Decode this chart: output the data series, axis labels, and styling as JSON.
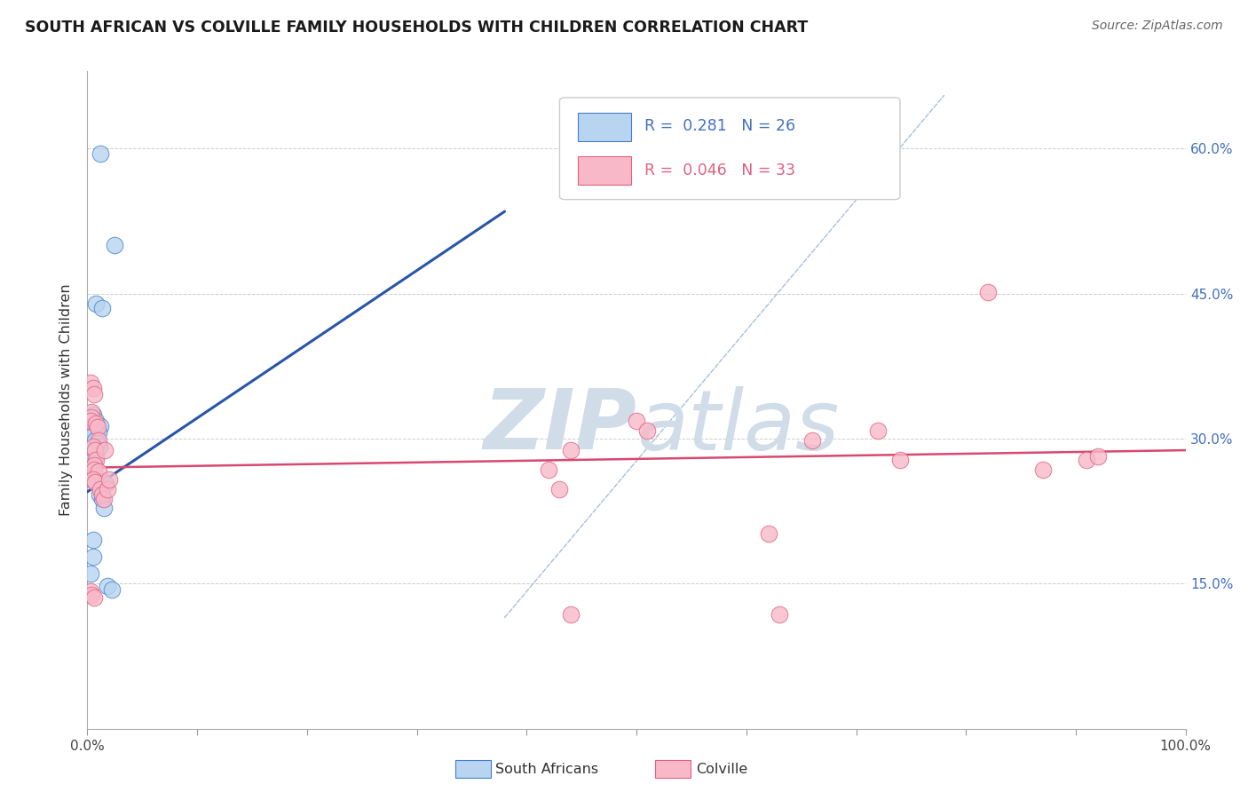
{
  "title": "SOUTH AFRICAN VS COLVILLE FAMILY HOUSEHOLDS WITH CHILDREN CORRELATION CHART",
  "source": "Source: ZipAtlas.com",
  "ylabel": "Family Households with Children",
  "xlim": [
    0,
    1.0
  ],
  "ylim": [
    0.0,
    0.68
  ],
  "xtick_vals": [
    0.0,
    0.1,
    0.2,
    0.3,
    0.4,
    0.5,
    0.6,
    0.7,
    0.8,
    0.9,
    1.0
  ],
  "xticklabels": [
    "0.0%",
    "",
    "",
    "",
    "",
    "",
    "",
    "",
    "",
    "",
    "100.0%"
  ],
  "ytick_vals": [
    0.0,
    0.15,
    0.3,
    0.45,
    0.6
  ],
  "yticklabels_right": [
    "",
    "15.0%",
    "30.0%",
    "45.0%",
    "60.0%"
  ],
  "blue_scatter": [
    [
      0.012,
      0.595
    ],
    [
      0.025,
      0.5
    ],
    [
      0.008,
      0.44
    ],
    [
      0.013,
      0.435
    ],
    [
      0.005,
      0.325
    ],
    [
      0.008,
      0.318
    ],
    [
      0.012,
      0.313
    ],
    [
      0.006,
      0.308
    ],
    [
      0.01,
      0.306
    ],
    [
      0.004,
      0.302
    ],
    [
      0.007,
      0.298
    ],
    [
      0.009,
      0.295
    ],
    [
      0.011,
      0.292
    ],
    [
      0.003,
      0.288
    ],
    [
      0.008,
      0.282
    ],
    [
      0.005,
      0.278
    ],
    [
      0.004,
      0.258
    ],
    [
      0.014,
      0.256
    ],
    [
      0.017,
      0.253
    ],
    [
      0.011,
      0.242
    ],
    [
      0.013,
      0.238
    ],
    [
      0.015,
      0.228
    ],
    [
      0.005,
      0.195
    ],
    [
      0.005,
      0.178
    ],
    [
      0.003,
      0.16
    ],
    [
      0.018,
      0.148
    ],
    [
      0.022,
      0.144
    ]
  ],
  "pink_scatter": [
    [
      0.003,
      0.358
    ],
    [
      0.005,
      0.352
    ],
    [
      0.006,
      0.346
    ],
    [
      0.004,
      0.328
    ],
    [
      0.004,
      0.322
    ],
    [
      0.003,
      0.318
    ],
    [
      0.008,
      0.316
    ],
    [
      0.009,
      0.312
    ],
    [
      0.01,
      0.298
    ],
    [
      0.005,
      0.292
    ],
    [
      0.007,
      0.288
    ],
    [
      0.008,
      0.278
    ],
    [
      0.006,
      0.272
    ],
    [
      0.006,
      0.268
    ],
    [
      0.01,
      0.266
    ],
    [
      0.005,
      0.258
    ],
    [
      0.007,
      0.255
    ],
    [
      0.012,
      0.248
    ],
    [
      0.013,
      0.242
    ],
    [
      0.015,
      0.238
    ],
    [
      0.016,
      0.288
    ],
    [
      0.018,
      0.248
    ],
    [
      0.02,
      0.258
    ],
    [
      0.003,
      0.142
    ],
    [
      0.004,
      0.138
    ],
    [
      0.006,
      0.136
    ],
    [
      0.42,
      0.268
    ],
    [
      0.43,
      0.248
    ],
    [
      0.44,
      0.288
    ],
    [
      0.5,
      0.318
    ],
    [
      0.51,
      0.308
    ],
    [
      0.62,
      0.202
    ],
    [
      0.66,
      0.298
    ],
    [
      0.72,
      0.308
    ],
    [
      0.74,
      0.278
    ],
    [
      0.82,
      0.452
    ],
    [
      0.87,
      0.268
    ],
    [
      0.91,
      0.278
    ],
    [
      0.92,
      0.282
    ],
    [
      0.44,
      0.118
    ],
    [
      0.63,
      0.118
    ]
  ],
  "blue_line_x": [
    0.0,
    0.38
  ],
  "blue_line_y": [
    0.245,
    0.535
  ],
  "pink_line_x": [
    0.0,
    1.0
  ],
  "pink_line_y": [
    0.27,
    0.288
  ],
  "dashed_line_x": [
    0.38,
    0.78
  ],
  "dashed_line_y": [
    0.115,
    0.655
  ],
  "blue_fill_color": "#b8d4f0",
  "blue_edge_color": "#4080c8",
  "pink_fill_color": "#f8b8c8",
  "pink_edge_color": "#e06080",
  "blue_line_color": "#2855a8",
  "pink_line_color": "#d84870",
  "dashed_line_color": "#90b0d0",
  "watermark_color": "#d0dce8",
  "bg_color": "#ffffff",
  "grid_color": "#cccccc",
  "title_color": "#1a1a1a",
  "axis_label_color": "#333333",
  "right_tick_color": "#4070c0"
}
